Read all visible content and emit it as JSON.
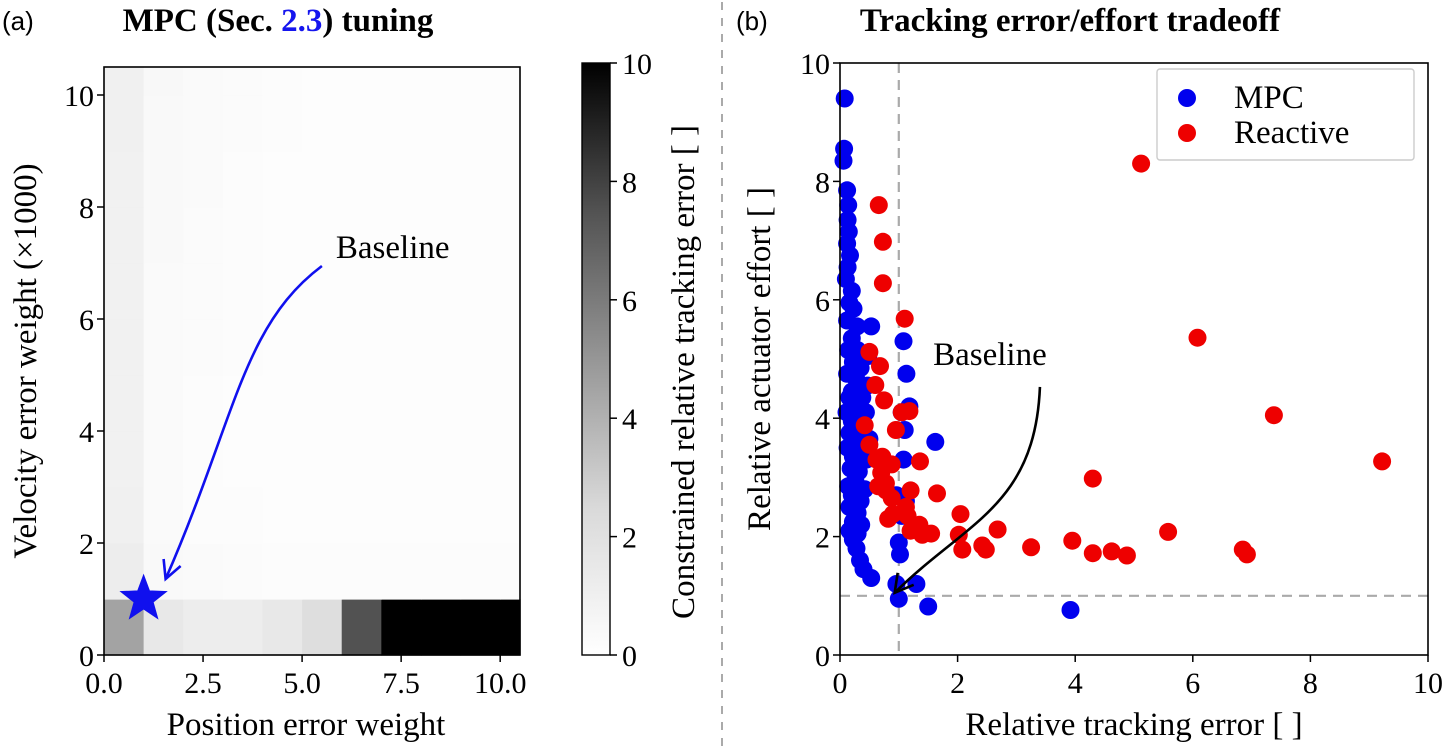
{
  "chart_data": [
    {
      "type": "heatmap",
      "panel_label": "(a)",
      "title_parts": [
        "MPC (Sec. ",
        "2.3",
        ") tuning"
      ],
      "xlabel": "Position error weight",
      "ylabel": "Velocity error weight (×1000)",
      "xlim": [
        0,
        10.5
      ],
      "ylim": [
        0,
        10.5
      ],
      "xticks": [
        "0.0",
        "2.5",
        "5.0",
        "7.5",
        "10.0"
      ],
      "xtick_values": [
        0,
        2.5,
        5,
        7.5,
        10
      ],
      "yticks": [
        "0",
        "2",
        "4",
        "6",
        "8",
        "10"
      ],
      "ytick_values": [
        0,
        2,
        4,
        6,
        8,
        10
      ],
      "x_edges": [
        0,
        1,
        2,
        3,
        4,
        5,
        6,
        7,
        8,
        9,
        10,
        10.5
      ],
      "y_edges": [
        0,
        1,
        2,
        3,
        4,
        5,
        6,
        7,
        8,
        9,
        10,
        10.5
      ],
      "rows": [
        [
          4.5,
          1.5,
          1.2,
          1.2,
          1.5,
          2.2,
          7.5,
          10,
          10,
          10,
          10
        ],
        [
          1.2,
          0.4,
          0.3,
          0.25,
          0.2,
          0.2,
          0.2,
          0.2,
          0.2,
          0.2,
          0.2
        ],
        [
          1.0,
          0.3,
          0.2,
          0.2,
          0.15,
          0.15,
          0.15,
          0.1,
          0.1,
          0.1,
          0.1
        ],
        [
          0.9,
          0.3,
          0.2,
          0.15,
          0.15,
          0.1,
          0.1,
          0.1,
          0.1,
          0.1,
          0.1
        ],
        [
          0.9,
          0.35,
          0.2,
          0.15,
          0.12,
          0.1,
          0.1,
          0.1,
          0.1,
          0.1,
          0.1
        ],
        [
          0.9,
          0.35,
          0.25,
          0.2,
          0.12,
          0.1,
          0.1,
          0.1,
          0.1,
          0.1,
          0.1
        ],
        [
          0.9,
          0.35,
          0.25,
          0.2,
          0.15,
          0.1,
          0.1,
          0.1,
          0.1,
          0.1,
          0.1
        ],
        [
          0.9,
          0.4,
          0.25,
          0.2,
          0.15,
          0.12,
          0.1,
          0.1,
          0.1,
          0.1,
          0.1
        ],
        [
          0.9,
          0.4,
          0.3,
          0.2,
          0.15,
          0.12,
          0.1,
          0.1,
          0.1,
          0.1,
          0.1
        ],
        [
          1.0,
          0.4,
          0.3,
          0.25,
          0.2,
          0.15,
          0.12,
          0.1,
          0.1,
          0.1,
          0.1
        ],
        [
          1.0,
          0.45,
          0.3,
          0.25,
          0.2,
          0.15,
          0.12,
          0.1,
          0.1,
          0.1,
          0.1
        ]
      ],
      "colorbar": {
        "label": "Constrained relative tracking error [ ]",
        "range": [
          0,
          10
        ],
        "ticks": [
          "0",
          "2",
          "4",
          "6",
          "8",
          "10"
        ],
        "tick_values": [
          0,
          2,
          4,
          6,
          8,
          10
        ],
        "colormap": "Greys"
      },
      "marker": {
        "x": 1,
        "y": 1,
        "shape": "star",
        "color": "#1010ee"
      },
      "annotation": {
        "text": "Baseline",
        "color": "#1010ee",
        "x": 5.5,
        "y": 7.0
      }
    },
    {
      "type": "scatter",
      "panel_label": "(b)",
      "title": "Tracking error/effort tradeoff",
      "xlabel": "Relative tracking error [ ]",
      "ylabel": "Relative actuator effort [ ]",
      "xlim": [
        0,
        10
      ],
      "ylim": [
        0,
        10
      ],
      "xticks": [
        "0",
        "2",
        "4",
        "6",
        "8",
        "10"
      ],
      "xtick_values": [
        0,
        2,
        4,
        6,
        8,
        10
      ],
      "yticks": [
        "0",
        "2",
        "4",
        "6",
        "8",
        "10"
      ],
      "ytick_values": [
        0,
        2,
        4,
        6,
        8,
        10
      ],
      "reference_lines": {
        "x": 1,
        "y": 1,
        "style": "dashed",
        "color": "#aaaaaa"
      },
      "legend": {
        "position": "top-right"
      },
      "annotation": {
        "text": "Baseline",
        "color": "#000000",
        "text_x": 2.55,
        "text_y": 4.9,
        "arrow_to_x": 0.93,
        "arrow_to_y": 1.05
      },
      "series": [
        {
          "name": "MPC",
          "color": "#0000ee",
          "points": [
            [
              0.08,
              9.4
            ],
            [
              0.07,
              8.55
            ],
            [
              0.06,
              8.35
            ],
            [
              0.12,
              7.85
            ],
            [
              0.14,
              7.6
            ],
            [
              0.13,
              7.35
            ],
            [
              0.15,
              7.15
            ],
            [
              0.12,
              6.95
            ],
            [
              0.17,
              6.75
            ],
            [
              0.13,
              6.55
            ],
            [
              0.1,
              6.35
            ],
            [
              0.2,
              6.15
            ],
            [
              0.16,
              5.95
            ],
            [
              0.23,
              5.85
            ],
            [
              0.12,
              5.65
            ],
            [
              0.29,
              5.55
            ],
            [
              0.53,
              5.55
            ],
            [
              0.2,
              5.35
            ],
            [
              0.14,
              5.15
            ],
            [
              0.3,
              5.15
            ],
            [
              0.48,
              5.05
            ],
            [
              0.22,
              4.95
            ],
            [
              0.35,
              4.85
            ],
            [
              0.12,
              4.75
            ],
            [
              0.28,
              4.65
            ],
            [
              0.47,
              4.55
            ],
            [
              0.2,
              4.45
            ],
            [
              0.16,
              4.35
            ],
            [
              0.38,
              4.35
            ],
            [
              0.27,
              4.2
            ],
            [
              0.11,
              4.1
            ],
            [
              0.44,
              4.1
            ],
            [
              0.2,
              3.95
            ],
            [
              0.33,
              3.85
            ],
            [
              0.16,
              3.75
            ],
            [
              0.28,
              3.65
            ],
            [
              0.5,
              3.65
            ],
            [
              0.13,
              3.5
            ],
            [
              0.38,
              3.5
            ],
            [
              0.22,
              3.35
            ],
            [
              0.45,
              3.3
            ],
            [
              0.18,
              3.15
            ],
            [
              0.32,
              3.1
            ],
            [
              0.26,
              2.95
            ],
            [
              0.14,
              2.85
            ],
            [
              0.42,
              2.8
            ],
            [
              0.2,
              2.7
            ],
            [
              0.35,
              2.6
            ],
            [
              0.16,
              2.5
            ],
            [
              0.3,
              2.4
            ],
            [
              0.22,
              2.25
            ],
            [
              0.36,
              2.2
            ],
            [
              0.16,
              2.1
            ],
            [
              0.3,
              2.05
            ],
            [
              0.22,
              1.95
            ],
            [
              0.28,
              1.8
            ],
            [
              0.34,
              1.6
            ],
            [
              0.4,
              1.45
            ],
            [
              0.53,
              1.3
            ],
            [
              1.08,
              5.3
            ],
            [
              1.13,
              4.75
            ],
            [
              1.18,
              4.2
            ],
            [
              1.05,
              4.1
            ],
            [
              1.1,
              3.8
            ],
            [
              1.62,
              3.6
            ],
            [
              1.08,
              3.3
            ],
            [
              0.96,
              2.7
            ],
            [
              1.12,
              2.6
            ],
            [
              1.05,
              2.35
            ],
            [
              1.0,
              1.9
            ],
            [
              1.02,
              1.7
            ],
            [
              0.96,
              1.2
            ],
            [
              1.3,
              1.2
            ],
            [
              1.0,
              0.95
            ],
            [
              1.5,
              0.82
            ],
            [
              3.92,
              0.76
            ]
          ]
        },
        {
          "name": "Reactive",
          "color": "#ee0000",
          "points": [
            [
              5.12,
              8.3
            ],
            [
              0.66,
              7.6
            ],
            [
              0.73,
              6.98
            ],
            [
              0.73,
              6.28
            ],
            [
              1.1,
              5.68
            ],
            [
              6.08,
              5.36
            ],
            [
              0.5,
              5.12
            ],
            [
              0.68,
              4.88
            ],
            [
              0.6,
              4.56
            ],
            [
              0.75,
              4.3
            ],
            [
              1.05,
              4.1
            ],
            [
              1.18,
              4.12
            ],
            [
              7.38,
              4.05
            ],
            [
              0.42,
              3.88
            ],
            [
              0.95,
              3.8
            ],
            [
              0.5,
              3.55
            ],
            [
              0.72,
              3.35
            ],
            [
              0.62,
              3.3
            ],
            [
              0.88,
              3.22
            ],
            [
              1.36,
              3.27
            ],
            [
              9.22,
              3.27
            ],
            [
              0.7,
              3.08
            ],
            [
              0.78,
              2.9
            ],
            [
              4.3,
              2.98
            ],
            [
              0.65,
              2.85
            ],
            [
              0.78,
              2.78
            ],
            [
              1.2,
              2.78
            ],
            [
              1.65,
              2.73
            ],
            [
              0.88,
              2.65
            ],
            [
              1.12,
              2.5
            ],
            [
              0.9,
              2.38
            ],
            [
              1.15,
              2.35
            ],
            [
              0.82,
              2.3
            ],
            [
              2.05,
              2.38
            ],
            [
              1.35,
              2.2
            ],
            [
              1.2,
              2.1
            ],
            [
              1.55,
              2.05
            ],
            [
              1.4,
              2.03
            ],
            [
              2.02,
              2.03
            ],
            [
              2.68,
              2.12
            ],
            [
              5.58,
              2.08
            ],
            [
              2.42,
              1.85
            ],
            [
              2.08,
              1.78
            ],
            [
              3.25,
              1.82
            ],
            [
              2.48,
              1.78
            ],
            [
              3.95,
              1.93
            ],
            [
              4.3,
              1.72
            ],
            [
              4.62,
              1.75
            ],
            [
              4.88,
              1.68
            ],
            [
              6.85,
              1.78
            ],
            [
              6.92,
              1.7
            ]
          ]
        }
      ]
    }
  ]
}
